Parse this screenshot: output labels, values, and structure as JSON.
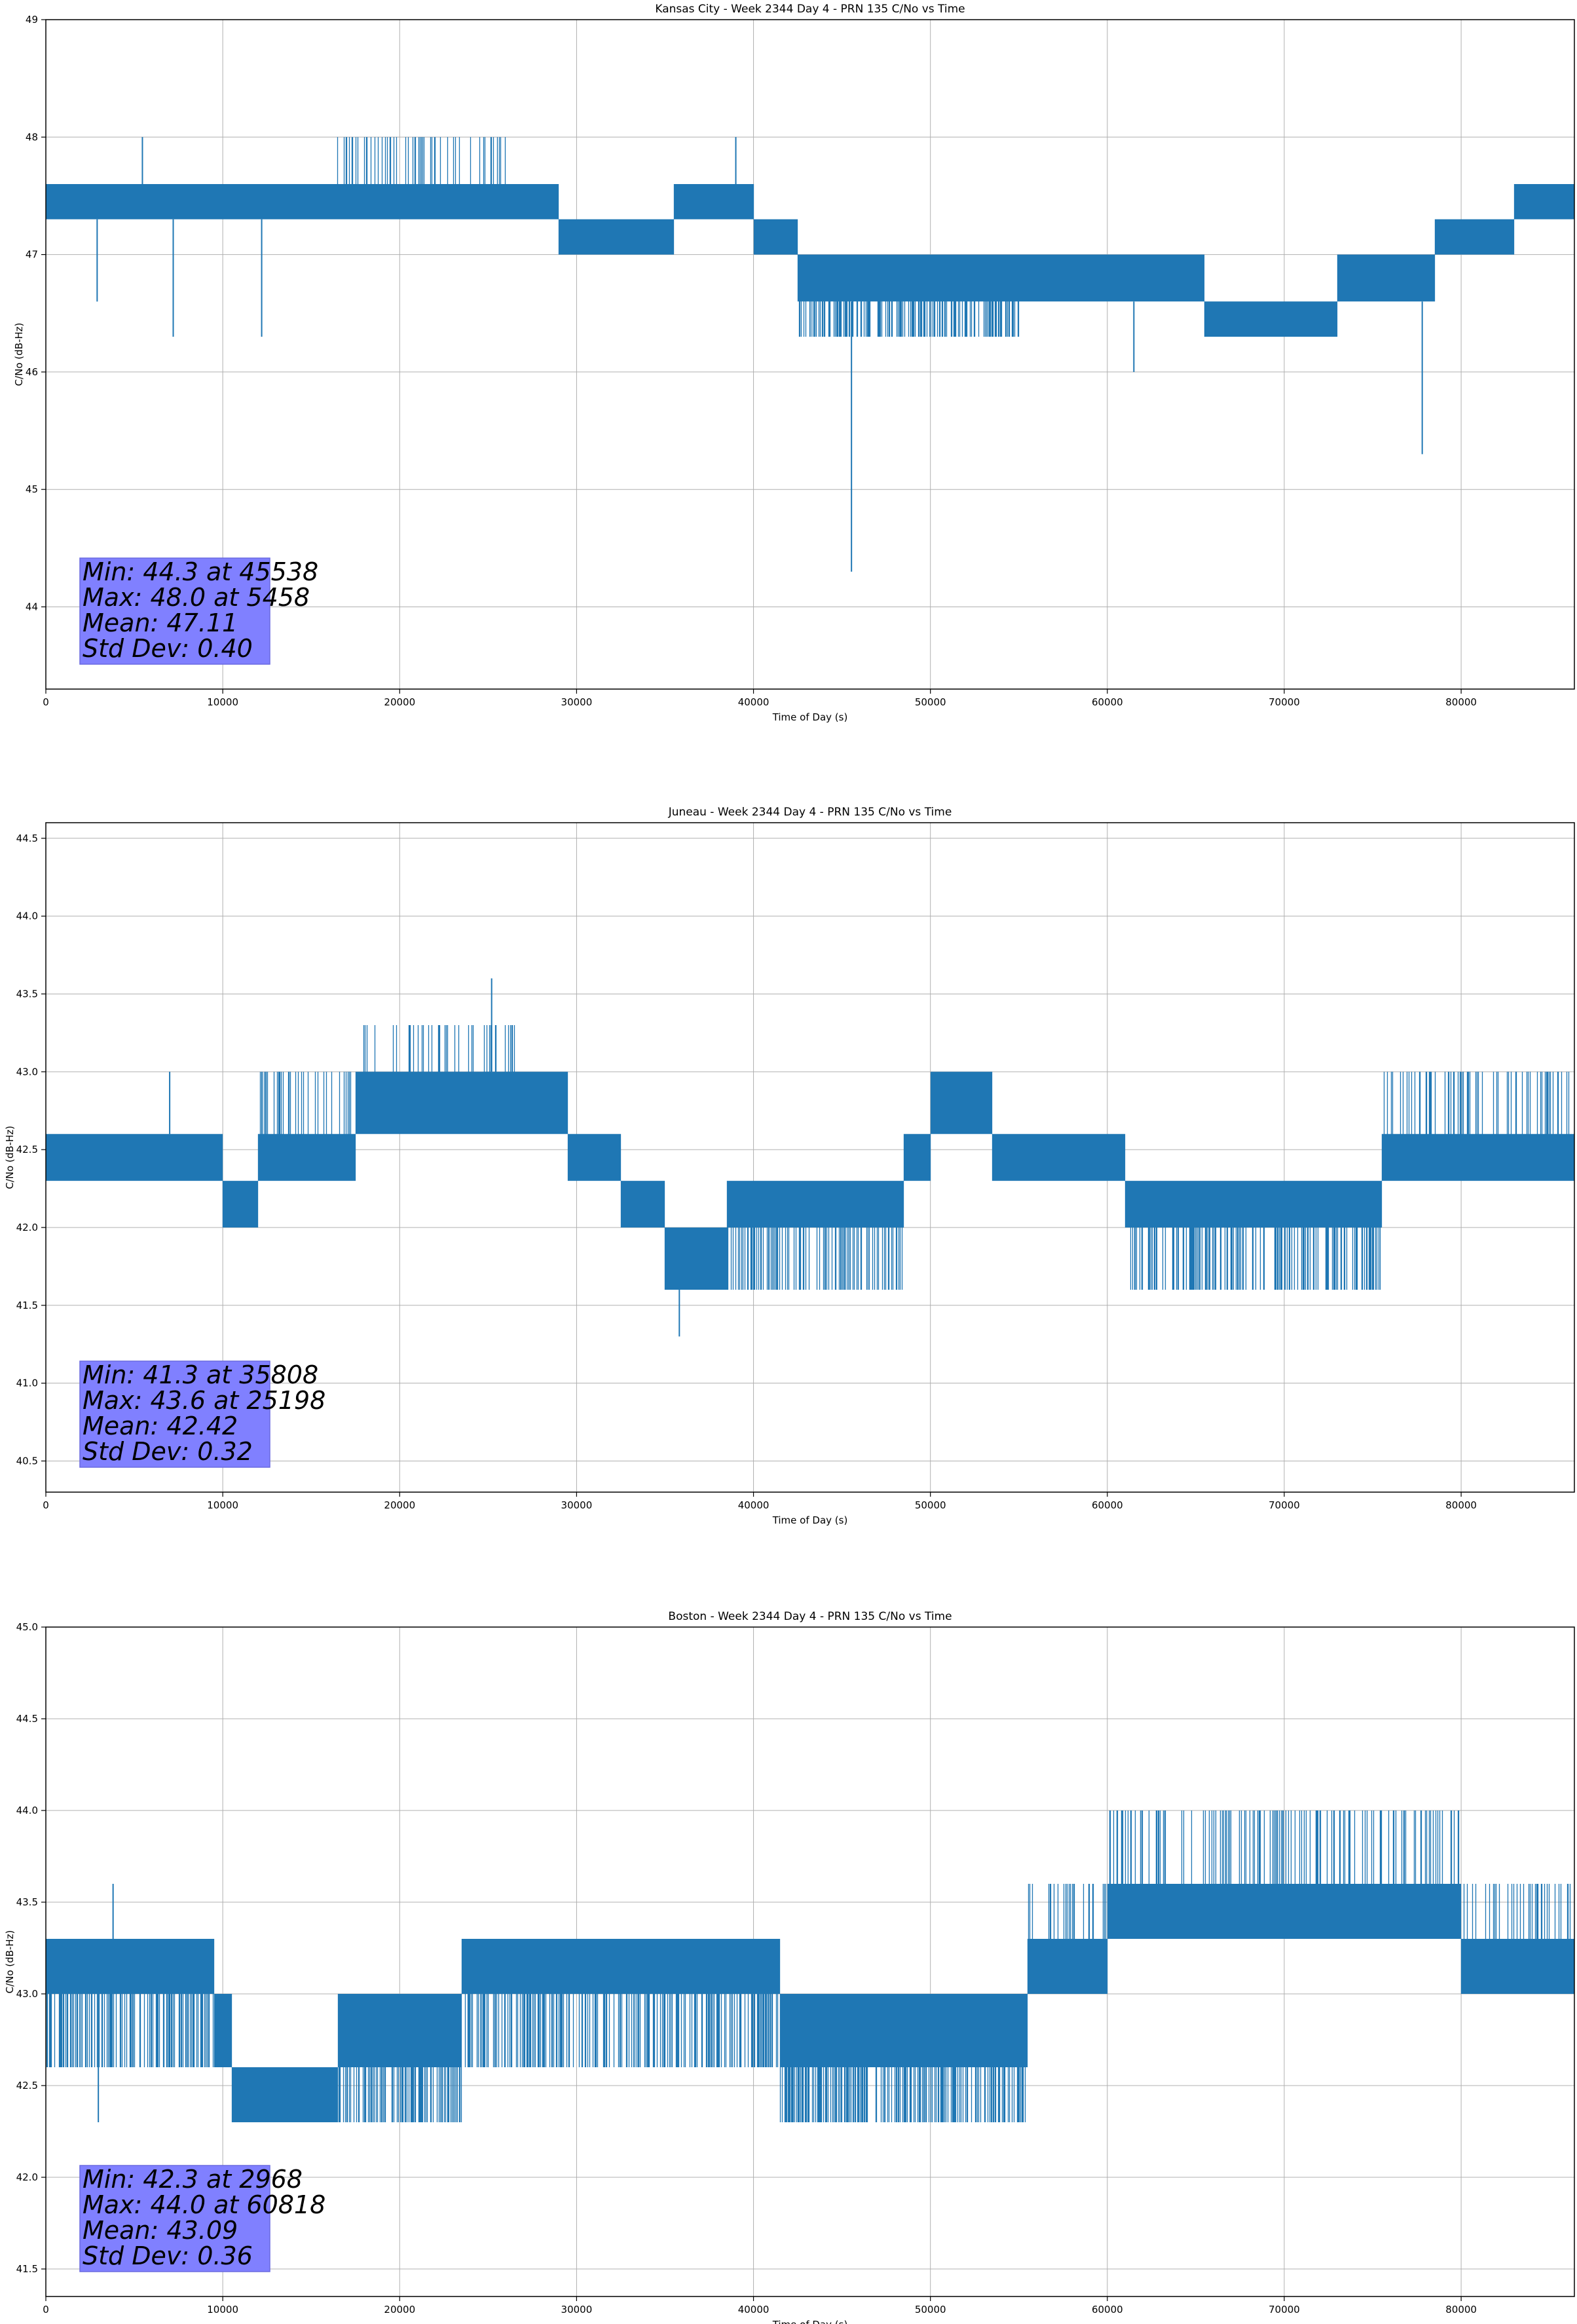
{
  "chart_data": [
    {
      "type": "line",
      "title": "Kansas City - Week 2344 Day 4 - PRN 135 C/No vs Time",
      "xlabel": "Time of Day (s)",
      "ylabel": "C/No (dB-Hz)",
      "xlim": [
        0,
        86400
      ],
      "ylim": [
        43.3,
        49.0
      ],
      "xticks": [
        0,
        10000,
        20000,
        30000,
        40000,
        50000,
        60000,
        70000,
        80000
      ],
      "yticks": [
        44,
        45,
        46,
        47,
        48,
        49
      ],
      "ytick_decimals": 0,
      "grid": true,
      "color": "#1f77b4",
      "segments": [
        {
          "x0": 0,
          "x1": 5300,
          "lo": 47.3,
          "hi": 47.6,
          "noise": 0.6
        },
        {
          "x0": 5300,
          "x1": 16000,
          "lo": 47.3,
          "hi": 47.6,
          "noise": 0.2
        },
        {
          "x0": 16000,
          "x1": 26000,
          "lo": 47.3,
          "hi": 47.6,
          "noise": 0.5,
          "up": 48.0
        },
        {
          "x0": 26000,
          "x1": 29000,
          "lo": 47.3,
          "hi": 47.6,
          "noise": 0.5
        },
        {
          "x0": 29000,
          "x1": 35500,
          "lo": 47.0,
          "hi": 47.3,
          "noise": 0.4
        },
        {
          "x0": 35500,
          "x1": 40000,
          "lo": 47.3,
          "hi": 47.6,
          "noise": 0.5
        },
        {
          "x0": 40000,
          "x1": 42500,
          "lo": 47.0,
          "hi": 47.3,
          "noise": 0.6
        },
        {
          "x0": 42500,
          "x1": 49000,
          "lo": 46.6,
          "hi": 47.0,
          "noise": 0.6,
          "down": 46.3
        },
        {
          "x0": 49000,
          "x1": 55000,
          "lo": 46.6,
          "hi": 47.0,
          "noise": 0.6,
          "down": 46.3
        },
        {
          "x0": 55000,
          "x1": 65500,
          "lo": 46.6,
          "hi": 47.0,
          "noise": 0.6
        },
        {
          "x0": 65500,
          "x1": 73000,
          "lo": 46.3,
          "hi": 46.6,
          "noise": 0.6
        },
        {
          "x0": 73000,
          "x1": 78500,
          "lo": 46.6,
          "hi": 47.0,
          "noise": 0.6
        },
        {
          "x0": 78500,
          "x1": 83000,
          "lo": 47.0,
          "hi": 47.3,
          "noise": 0.6
        },
        {
          "x0": 83000,
          "x1": 86400,
          "lo": 47.3,
          "hi": 47.6,
          "noise": 0.6
        }
      ],
      "spikes": [
        {
          "x": 5458,
          "y": 48.0
        },
        {
          "x": 39000,
          "y": 48.0
        },
        {
          "x": 45538,
          "y": 44.3
        },
        {
          "x": 77800,
          "y": 45.3
        },
        {
          "x": 7200,
          "y": 46.3
        },
        {
          "x": 12200,
          "y": 46.3
        },
        {
          "x": 2900,
          "y": 46.6
        },
        {
          "x": 61500,
          "y": 46.0
        }
      ],
      "seed": 11,
      "stats": {
        "line1": "Min: 44.3 at 45538",
        "line2": "Max: 48.0 at 5458",
        "line3": "Mean: 47.11",
        "line4": "Std Dev: 0.40"
      }
    },
    {
      "type": "line",
      "title": "Juneau - Week 2344 Day 4 - PRN 135 C/No vs Time",
      "xlabel": "Time of Day (s)",
      "ylabel": "C/No (dB-Hz)",
      "xlim": [
        0,
        86400
      ],
      "ylim": [
        40.3,
        44.6
      ],
      "xticks": [
        0,
        10000,
        20000,
        30000,
        40000,
        50000,
        60000,
        70000,
        80000
      ],
      "yticks": [
        40.5,
        41.0,
        41.5,
        42.0,
        42.5,
        43.0,
        43.5,
        44.0,
        44.5
      ],
      "ytick_decimals": 1,
      "grid": true,
      "color": "#1f77b4",
      "segments": [
        {
          "x0": 0,
          "x1": 10000,
          "lo": 42.3,
          "hi": 42.6,
          "noise": 0.6
        },
        {
          "x0": 10000,
          "x1": 12000,
          "lo": 42.0,
          "hi": 42.3,
          "noise": 0.5
        },
        {
          "x0": 12000,
          "x1": 17500,
          "lo": 42.3,
          "hi": 42.6,
          "noise": 0.6,
          "up": 43.0
        },
        {
          "x0": 17500,
          "x1": 26500,
          "lo": 42.6,
          "hi": 43.0,
          "noise": 0.6,
          "up": 43.3
        },
        {
          "x0": 26500,
          "x1": 29500,
          "lo": 42.6,
          "hi": 43.0,
          "noise": 0.6
        },
        {
          "x0": 29500,
          "x1": 32500,
          "lo": 42.3,
          "hi": 42.6,
          "noise": 0.6
        },
        {
          "x0": 32500,
          "x1": 35000,
          "lo": 42.0,
          "hi": 42.3,
          "noise": 0.6
        },
        {
          "x0": 35000,
          "x1": 38500,
          "lo": 41.6,
          "hi": 42.0,
          "noise": 0.6
        },
        {
          "x0": 38500,
          "x1": 48500,
          "lo": 42.0,
          "hi": 42.3,
          "noise": 0.5,
          "down": 41.6
        },
        {
          "x0": 48500,
          "x1": 50000,
          "lo": 42.3,
          "hi": 42.6,
          "noise": 0.6
        },
        {
          "x0": 50000,
          "x1": 53500,
          "lo": 42.6,
          "hi": 43.0,
          "noise": 0.6
        },
        {
          "x0": 53500,
          "x1": 61000,
          "lo": 42.3,
          "hi": 42.6,
          "noise": 0.6
        },
        {
          "x0": 61000,
          "x1": 75500,
          "lo": 42.0,
          "hi": 42.3,
          "noise": 0.5,
          "down": 41.6
        },
        {
          "x0": 75500,
          "x1": 86400,
          "lo": 42.3,
          "hi": 42.6,
          "noise": 0.6,
          "up": 43.0
        }
      ],
      "spikes": [
        {
          "x": 25198,
          "y": 43.6
        },
        {
          "x": 35808,
          "y": 41.3
        },
        {
          "x": 7000,
          "y": 43.0
        }
      ],
      "seed": 29,
      "stats": {
        "line1": "Min: 41.3 at 35808",
        "line2": "Max: 43.6 at 25198",
        "line3": "Mean: 42.42",
        "line4": "Std Dev: 0.32"
      }
    },
    {
      "type": "line",
      "title": "Boston - Week 2344 Day 4 - PRN 135 C/No vs Time",
      "xlabel": "Time of Day (s)",
      "ylabel": "C/No (dB-Hz)",
      "xlim": [
        0,
        86400
      ],
      "ylim": [
        41.35,
        45.0
      ],
      "xticks": [
        0,
        10000,
        20000,
        30000,
        40000,
        50000,
        60000,
        70000,
        80000
      ],
      "yticks": [
        41.5,
        42.0,
        42.5,
        43.0,
        43.5,
        44.0,
        44.5,
        45.0
      ],
      "ytick_decimals": 1,
      "grid": true,
      "color": "#1f77b4",
      "segments": [
        {
          "x0": 0,
          "x1": 9500,
          "lo": 43.0,
          "hi": 43.3,
          "noise": 0.6,
          "down": 42.6
        },
        {
          "x0": 9500,
          "x1": 10500,
          "lo": 42.6,
          "hi": 43.0,
          "noise": 0.6
        },
        {
          "x0": 10500,
          "x1": 16500,
          "lo": 42.3,
          "hi": 42.6,
          "noise": 0.6
        },
        {
          "x0": 16500,
          "x1": 23500,
          "lo": 42.6,
          "hi": 43.0,
          "noise": 0.6,
          "down": 42.3
        },
        {
          "x0": 23500,
          "x1": 41500,
          "lo": 43.0,
          "hi": 43.3,
          "noise": 0.6,
          "down": 42.6
        },
        {
          "x0": 41500,
          "x1": 55500,
          "lo": 42.6,
          "hi": 43.0,
          "noise": 0.6,
          "down": 42.3
        },
        {
          "x0": 55500,
          "x1": 60000,
          "lo": 43.0,
          "hi": 43.3,
          "noise": 0.6,
          "up": 43.6
        },
        {
          "x0": 60000,
          "x1": 80000,
          "lo": 43.3,
          "hi": 43.6,
          "noise": 0.6,
          "up": 44.0
        },
        {
          "x0": 80000,
          "x1": 86400,
          "lo": 43.0,
          "hi": 43.3,
          "noise": 0.6,
          "up": 43.6
        }
      ],
      "spikes": [
        {
          "x": 2968,
          "y": 42.3
        },
        {
          "x": 60818,
          "y": 44.0
        },
        {
          "x": 3800,
          "y": 43.6
        }
      ],
      "seed": 47,
      "stats": {
        "line1": "Min: 42.3 at 2968",
        "line2": "Max: 44.0 at 60818",
        "line3": "Mean: 43.09",
        "line4": "Std Dev: 0.36"
      }
    }
  ]
}
